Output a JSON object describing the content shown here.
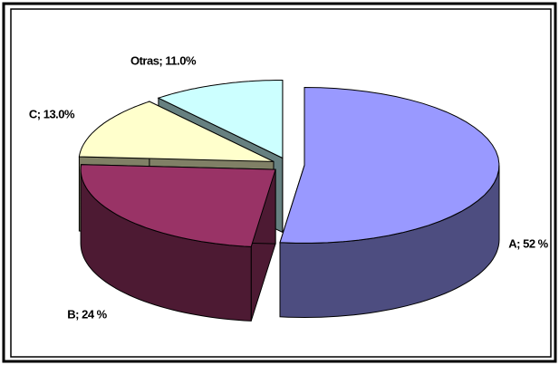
{
  "chart_data": {
    "type": "pie3d",
    "values": [
      52,
      24,
      13,
      11
    ],
    "value_labels": [
      "A; 52 %",
      "B; 24 %",
      "C; 13.0%",
      "Otras; 11.0%"
    ],
    "colors": [
      "#9999ff",
      "#993366",
      "#ffffcc",
      "#ccffff"
    ]
  }
}
